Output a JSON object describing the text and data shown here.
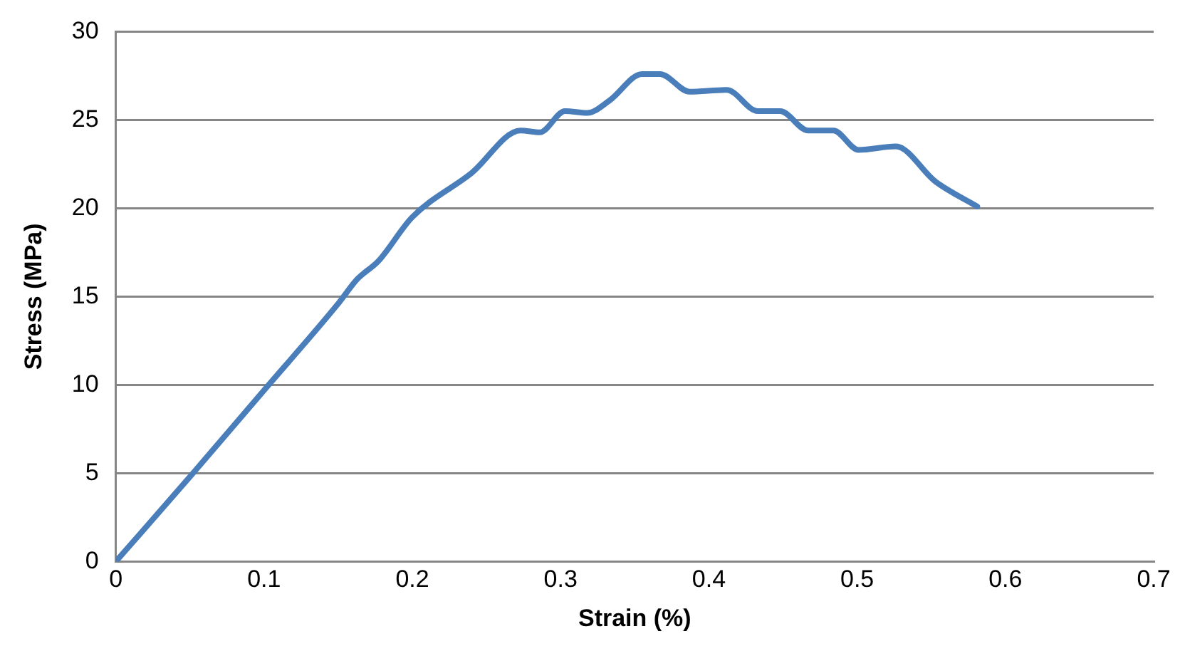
{
  "chart_data": {
    "type": "line",
    "xlabel": "Strain (%)",
    "ylabel": "Stress (MPa)",
    "series": [
      {
        "color": "#4a7ebb",
        "x": [
          0,
          0.05,
          0.1,
          0.15,
          0.163,
          0.177,
          0.2,
          0.24,
          0.273,
          0.286,
          0.303,
          0.318,
          0.333,
          0.355,
          0.367,
          0.387,
          0.412,
          0.433,
          0.448,
          0.467,
          0.484,
          0.501,
          0.526,
          0.553,
          0.581
        ],
        "values": [
          0,
          4.8,
          9.7,
          14.6,
          16.0,
          17.0,
          19.5,
          22.0,
          24.4,
          24.3,
          25.5,
          25.4,
          26.1,
          27.6,
          27.6,
          26.6,
          26.7,
          25.5,
          25.5,
          24.4,
          24.4,
          23.3,
          23.5,
          21.5,
          20.1
        ]
      }
    ],
    "xlim": [
      0,
      0.7
    ],
    "xticks": [
      0,
      0.1,
      0.2,
      0.3,
      0.4,
      0.5,
      0.6,
      0.7
    ],
    "ylim": [
      0,
      30
    ],
    "yticks": [
      0,
      5,
      10,
      15,
      20,
      25,
      30
    ],
    "grid": "y",
    "legend": false,
    "marker": "none",
    "line_style": "solid"
  }
}
